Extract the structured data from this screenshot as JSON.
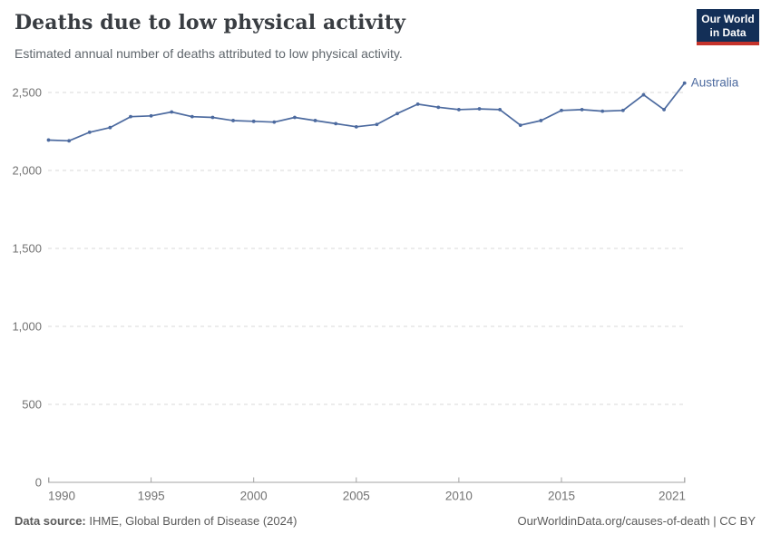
{
  "logo": {
    "line1": "Our World",
    "line2": "in Data"
  },
  "footer": {
    "source_label": "Data source:",
    "source_value": " IHME, Global Burden of Disease (2024)",
    "link": "OurWorldinData.org/causes-of-death | CC BY"
  },
  "colors": {
    "line": "#4c6a9f",
    "logo_navy": "#132f57",
    "logo_red": "#c5332b",
    "grid": "#d9d9d9",
    "axis": "#a3a3a3",
    "tick_text": "#737373"
  },
  "chart_data": {
    "type": "line",
    "title": "Deaths due to low physical activity",
    "subtitle": "Estimated annual number of deaths attributed to low physical activity.",
    "x": [
      1990,
      1991,
      1992,
      1993,
      1994,
      1995,
      1996,
      1997,
      1998,
      1999,
      2000,
      2001,
      2002,
      2003,
      2004,
      2005,
      2006,
      2007,
      2008,
      2009,
      2010,
      2011,
      2012,
      2013,
      2014,
      2015,
      2016,
      2017,
      2018,
      2019,
      2020,
      2021
    ],
    "series": [
      {
        "name": "Australia",
        "color": "#4c6a9f",
        "values": [
          2195,
          2190,
          2245,
          2275,
          2345,
          2350,
          2375,
          2345,
          2340,
          2320,
          2315,
          2310,
          2340,
          2320,
          2300,
          2280,
          2295,
          2365,
          2425,
          2405,
          2390,
          2395,
          2390,
          2290,
          2320,
          2385,
          2390,
          2380,
          2385,
          2485,
          2390,
          2560
        ]
      }
    ],
    "x_ticks": [
      1990,
      1995,
      2000,
      2005,
      2010,
      2015,
      2021
    ],
    "y_ticks": [
      0,
      500,
      1000,
      1500,
      2000,
      2500
    ],
    "ylim": [
      0,
      2500
    ],
    "xlabel": "",
    "ylabel": "",
    "grid": "horizontal-dashed",
    "legend": "entity-label-at-line-end"
  }
}
